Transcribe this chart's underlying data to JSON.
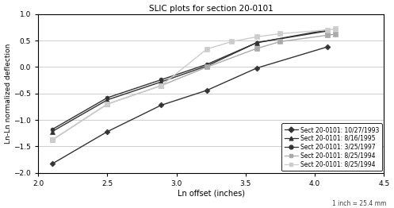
{
  "title": "SLIC plots for section 20-0101",
  "xlabel": "Ln offset (inches)",
  "ylabel": "Ln-Ln normalized deflection",
  "xlim": [
    2.0,
    4.5
  ],
  "ylim": [
    -2.0,
    1.0
  ],
  "footnote": "1 inch = 25.4 mm",
  "xticks": [
    2.0,
    2.5,
    3.0,
    3.5,
    4.0,
    4.5
  ],
  "yticks": [
    -2.0,
    -1.5,
    -1.0,
    -0.5,
    0.0,
    0.5,
    1.0
  ],
  "series": [
    {
      "label": "Sect 20-0101: 10/27/1993",
      "x": [
        2.1,
        2.5,
        2.89,
        3.22,
        3.58,
        4.09
      ],
      "y": [
        -1.83,
        -1.22,
        -0.72,
        -0.44,
        -0.02,
        0.38
      ],
      "color": "#333333",
      "marker": "D",
      "markersize": 3.5,
      "linewidth": 1.0,
      "linestyle": "-"
    },
    {
      "label": "Sect 20-0101: 8/16/1995",
      "x": [
        2.1,
        2.5,
        2.89,
        3.22,
        3.58,
        4.09
      ],
      "y": [
        -1.22,
        -0.62,
        -0.28,
        0.02,
        0.46,
        0.68
      ],
      "color": "#333333",
      "marker": "^",
      "markersize": 4.5,
      "linewidth": 1.0,
      "linestyle": "-"
    },
    {
      "label": "Sect 20-0101: 3/25/1997",
      "x": [
        2.1,
        2.5,
        2.89,
        3.22,
        3.58,
        4.09
      ],
      "y": [
        -1.18,
        -0.58,
        -0.24,
        0.05,
        0.46,
        0.7
      ],
      "color": "#333333",
      "marker": "o",
      "markersize": 3.5,
      "linewidth": 1.0,
      "linestyle": "-"
    },
    {
      "label": "Sect 20-0101: 8/25/1994",
      "x": [
        2.1,
        2.5,
        2.89,
        3.22,
        3.58,
        3.75,
        4.09,
        4.15
      ],
      "y": [
        -1.38,
        -0.7,
        -0.35,
        0.0,
        0.35,
        0.48,
        0.6,
        0.62
      ],
      "color": "#aaaaaa",
      "marker": "s",
      "markersize": 4.5,
      "linewidth": 1.0,
      "linestyle": "-"
    },
    {
      "label": "Sect 20-0101: 8/25/1994",
      "x": [
        2.1,
        2.5,
        2.89,
        3.22,
        3.4,
        3.58,
        3.75,
        4.09,
        4.15
      ],
      "y": [
        -1.38,
        -0.7,
        -0.35,
        0.34,
        0.48,
        0.57,
        0.63,
        0.7,
        0.72
      ],
      "color": "#cccccc",
      "marker": "s",
      "markersize": 4.5,
      "linewidth": 1.0,
      "linestyle": "-"
    }
  ]
}
